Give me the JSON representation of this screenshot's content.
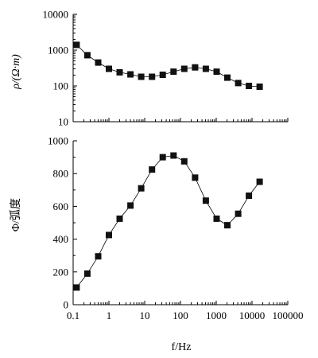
{
  "chart_data": [
    {
      "type": "line",
      "panel": "top",
      "ylabel": "ρ/(Ω·m)",
      "yscale": "log",
      "xscale": "log",
      "ylim": [
        10,
        10000
      ],
      "xlim": [
        0.1,
        100000
      ],
      "y_tick_labels": [
        "10000",
        "1000",
        "100",
        "10"
      ],
      "y_tick_values": [
        10000,
        1000,
        100,
        10
      ],
      "grid": false,
      "series": [
        {
          "x": [
            0.125,
            0.25,
            0.5,
            1,
            2,
            4,
            8,
            16,
            32,
            64,
            128,
            256,
            512,
            1024,
            2048,
            4096,
            8192,
            16384
          ],
          "values": [
            1400,
            720,
            450,
            300,
            240,
            210,
            180,
            180,
            205,
            250,
            300,
            330,
            300,
            250,
            170,
            120,
            100,
            95
          ]
        }
      ]
    },
    {
      "type": "line",
      "panel": "bottom",
      "ylabel": "Φ/弧度",
      "xlabel": "f/Hz",
      "xscale": "log",
      "ylim": [
        0,
        1000
      ],
      "xlim": [
        0.1,
        100000
      ],
      "y_tick_labels": [
        "1000",
        "800",
        "600",
        "400",
        "200",
        "0"
      ],
      "y_tick_values": [
        1000,
        800,
        600,
        400,
        200,
        0
      ],
      "x_tick_labels": [
        "0.1",
        "1",
        "10",
        "100",
        "1000",
        "10000",
        "100000"
      ],
      "x_tick_values": [
        0.1,
        1,
        10,
        100,
        1000,
        10000,
        100000
      ],
      "grid": false,
      "series": [
        {
          "x": [
            0.125,
            0.25,
            0.5,
            1,
            2,
            4,
            8,
            16,
            32,
            64,
            128,
            256,
            512,
            1024,
            2048,
            4096,
            8192,
            16384
          ],
          "values": [
            105,
            190,
            295,
            425,
            525,
            605,
            710,
            825,
            900,
            910,
            875,
            775,
            635,
            525,
            485,
            555,
            665,
            750
          ]
        }
      ]
    }
  ]
}
